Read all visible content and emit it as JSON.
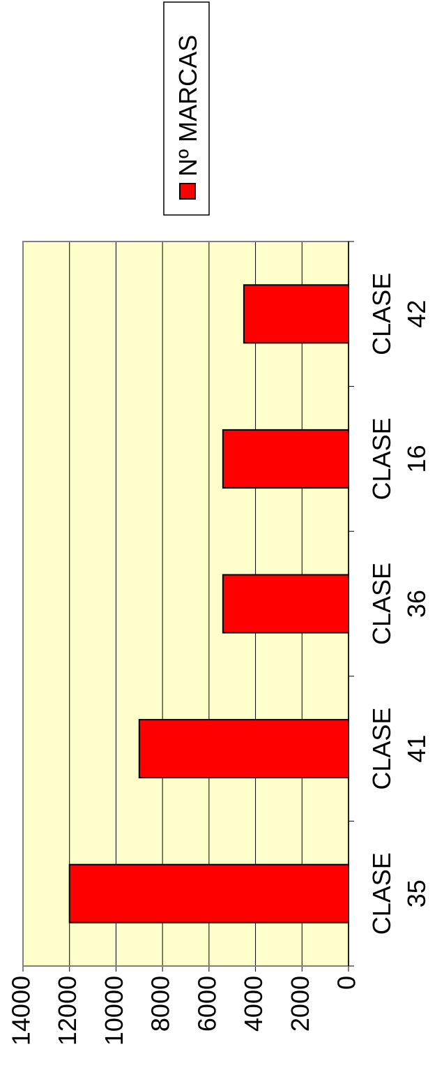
{
  "chart_data": {
    "type": "bar",
    "categories": [
      "CLASE 35",
      "CLASE 41",
      "CLASE 36",
      "CLASE 16",
      "CLASE 42"
    ],
    "series": [
      {
        "name": "Nº MARCAS",
        "color": "#ff0000",
        "values": [
          12000,
          9000,
          5400,
          5400,
          4500
        ]
      }
    ],
    "ylim": [
      0,
      14000
    ],
    "yticks": [
      0,
      2000,
      4000,
      6000,
      8000,
      10000,
      12000,
      14000
    ],
    "grid": true,
    "plot_background": "#ffffcc",
    "legend": "right"
  }
}
